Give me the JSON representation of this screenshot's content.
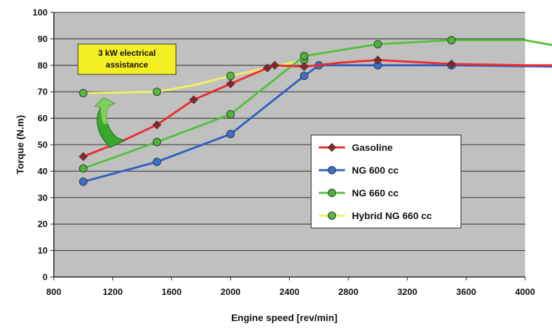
{
  "chart_data": {
    "type": "line",
    "xlabel": "Engine speed [rev/min]",
    "ylabel": "Torque (N.m)",
    "xlim": [
      800,
      4000
    ],
    "ylim": [
      0,
      100
    ],
    "x_ticks": [
      800,
      1200,
      1600,
      2000,
      2400,
      2800,
      3200,
      3600,
      4000
    ],
    "y_ticks": [
      0,
      10,
      20,
      30,
      40,
      50,
      60,
      70,
      80,
      90,
      100
    ],
    "grid": "horizontal",
    "plot_background": "#c0c0c0",
    "legend_position": "center-right",
    "annotation": "3 kW electrical assistance",
    "series": [
      {
        "name": "Gasoline",
        "color": "#ee2b2b",
        "marker_fill": "#cc1a1a",
        "marker": "star-diamond",
        "points": [
          [
            1000,
            45.5
          ],
          [
            1500,
            57.5
          ],
          [
            1750,
            67
          ],
          [
            2000,
            73
          ],
          [
            2250,
            79
          ],
          [
            2300,
            80
          ],
          [
            2500,
            79.5
          ],
          [
            3000,
            82
          ],
          [
            3500,
            80.5
          ]
        ],
        "trend": [
          [
            1000,
            45.5
          ],
          [
            1250,
            51
          ],
          [
            1500,
            57.5
          ],
          [
            1750,
            67
          ],
          [
            2000,
            73
          ],
          [
            2250,
            79
          ],
          [
            2300,
            80
          ],
          [
            2500,
            79.5
          ],
          [
            2750,
            81
          ],
          [
            3000,
            82
          ],
          [
            3500,
            80.5
          ],
          [
            4000,
            80
          ],
          [
            4200,
            80
          ]
        ]
      },
      {
        "name": "NG 600 cc",
        "color": "#3060c0",
        "marker_fill": "#3a6fcc",
        "marker": "circle",
        "points": [
          [
            1000,
            36
          ],
          [
            1500,
            43.5
          ],
          [
            2000,
            54
          ],
          [
            2500,
            76
          ],
          [
            2600,
            80
          ],
          [
            3000,
            80
          ],
          [
            3500,
            80
          ]
        ],
        "trend": [
          [
            1000,
            36
          ],
          [
            1500,
            43.5
          ],
          [
            2000,
            54
          ],
          [
            2500,
            76
          ],
          [
            2600,
            80
          ],
          [
            3000,
            80
          ],
          [
            3500,
            80
          ],
          [
            4200,
            79.5
          ]
        ]
      },
      {
        "name": "NG 660 cc",
        "color": "#55c040",
        "marker_fill": "#4cb535",
        "marker": "circle",
        "points": [
          [
            1000,
            41
          ],
          [
            1500,
            51
          ],
          [
            2000,
            61.5
          ],
          [
            2500,
            83.5
          ],
          [
            3000,
            88
          ],
          [
            3500,
            89.5
          ]
        ],
        "trend": [
          [
            1000,
            41
          ],
          [
            1500,
            51
          ],
          [
            2000,
            61.5
          ],
          [
            2500,
            83.5
          ],
          [
            3000,
            88
          ],
          [
            3500,
            89.5
          ],
          [
            4000,
            89.5
          ],
          [
            4200,
            87.5
          ]
        ]
      },
      {
        "name": "Hybrid NG 660 cc",
        "color": "#f0f060",
        "marker_fill": "#55b840",
        "marker": "circle",
        "points": [
          [
            1000,
            69.5
          ],
          [
            1500,
            70
          ],
          [
            2000,
            76
          ],
          [
            2500,
            82
          ]
        ],
        "trend": [
          [
            1000,
            69.5
          ],
          [
            1500,
            70
          ],
          [
            1750,
            72.5
          ],
          [
            2000,
            76
          ],
          [
            2500,
            82
          ]
        ]
      }
    ]
  }
}
